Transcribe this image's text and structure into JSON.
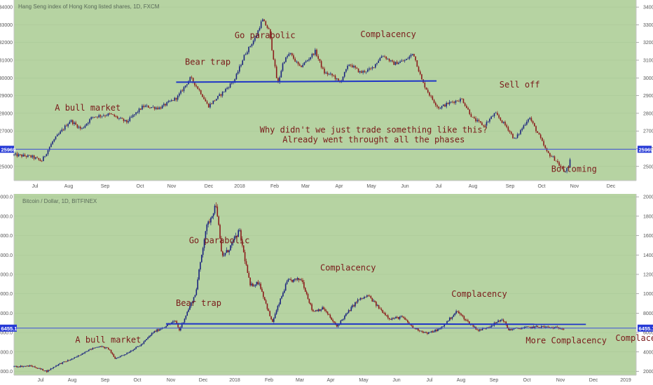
{
  "colors": {
    "background": "#b6d3a2",
    "border": "#c5c5c5",
    "axis_bg": "#ffffff",
    "candle_up": "#1a237e",
    "candle_down": "#8b1a1a",
    "support_line": "#1f35c7",
    "price_line": "#3c50d8",
    "price_tag": "#2539d6",
    "annotation_text": "#7a1b1b"
  },
  "chart_data": [
    {
      "type": "candlestick",
      "title": "Hang Seng index of Hong Kong listed shares, 1D, FXCM",
      "x_tick_labels": [
        "Jul",
        "Aug",
        "Sep",
        "Oct",
        "Nov",
        "Dec",
        "2018",
        "Feb",
        "Mar",
        "Apr",
        "May",
        "Jun",
        "Jul",
        "Aug",
        "Sep",
        "Oct",
        "Nov",
        "Dec"
      ],
      "x_range": [
        "2017-06-15",
        "2018-12-31"
      ],
      "y_ticks": [
        25000,
        26000,
        27000,
        28000,
        29000,
        30000,
        31000,
        32000,
        33000,
        34000
      ],
      "ylim": [
        24200,
        34400
      ],
      "close_series": [
        [
          "2017-06-15",
          25650
        ],
        [
          "2017-07-01",
          25550
        ],
        [
          "2017-07-10",
          25300
        ],
        [
          "2017-07-20",
          26400
        ],
        [
          "2017-08-05",
          27600
        ],
        [
          "2017-08-15",
          27100
        ],
        [
          "2017-08-25",
          27800
        ],
        [
          "2017-09-10",
          27950
        ],
        [
          "2017-09-25",
          27500
        ],
        [
          "2017-10-10",
          28400
        ],
        [
          "2017-10-25",
          28300
        ],
        [
          "2017-11-10",
          28900
        ],
        [
          "2017-11-22",
          30000
        ],
        [
          "2017-12-01",
          29200
        ],
        [
          "2017-12-08",
          28400
        ],
        [
          "2017-12-20",
          29100
        ],
        [
          "2018-01-01",
          29900
        ],
        [
          "2018-01-10",
          31300
        ],
        [
          "2018-01-20",
          32300
        ],
        [
          "2018-01-26",
          33300
        ],
        [
          "2018-02-01",
          32700
        ],
        [
          "2018-02-05",
          31200
        ],
        [
          "2018-02-09",
          29600
        ],
        [
          "2018-02-14",
          30900
        ],
        [
          "2018-02-20",
          31400
        ],
        [
          "2018-03-01",
          30600
        ],
        [
          "2018-03-08",
          31000
        ],
        [
          "2018-03-15",
          31500
        ],
        [
          "2018-03-23",
          30300
        ],
        [
          "2018-04-01",
          30100
        ],
        [
          "2018-04-06",
          29700
        ],
        [
          "2018-04-15",
          30800
        ],
        [
          "2018-04-25",
          30300
        ],
        [
          "2018-05-05",
          30500
        ],
        [
          "2018-05-15",
          31300
        ],
        [
          "2018-05-25",
          30800
        ],
        [
          "2018-06-05",
          31000
        ],
        [
          "2018-06-12",
          31400
        ],
        [
          "2018-06-20",
          29800
        ],
        [
          "2018-06-28",
          28900
        ],
        [
          "2018-07-05",
          28300
        ],
        [
          "2018-07-15",
          28600
        ],
        [
          "2018-07-26",
          28800
        ],
        [
          "2018-08-05",
          27700
        ],
        [
          "2018-08-15",
          27300
        ],
        [
          "2018-08-25",
          28000
        ],
        [
          "2018-09-05",
          27200
        ],
        [
          "2018-09-12",
          26500
        ],
        [
          "2018-09-25",
          27800
        ],
        [
          "2018-10-05",
          26600
        ],
        [
          "2018-10-11",
          25800
        ],
        [
          "2018-10-20",
          25300
        ],
        [
          "2018-10-26",
          24700
        ],
        [
          "2018-10-31",
          24900
        ],
        [
          "2018-11-02",
          25969
        ]
      ],
      "support_line": {
        "start": [
          "2017-11-09",
          29760
        ],
        "end": [
          "2018-07-03",
          29830
        ]
      },
      "last_price": {
        "value": 25969,
        "label": "25969"
      },
      "annotations": [
        {
          "text": "A bull market",
          "at": [
            "2017-07-22",
            28150
          ]
        },
        {
          "text": "Bear trap",
          "at": [
            "2017-11-17",
            30750
          ]
        },
        {
          "text": "Go parabolic",
          "at": [
            "2018-01-01",
            32250
          ]
        },
        {
          "text": "Complacency",
          "at": [
            "2018-04-25",
            32300
          ]
        },
        {
          "text": "Sell off",
          "at": [
            "2018-08-29",
            29450
          ]
        },
        {
          "text": "Why didn't we just trade something like this?",
          "at": [
            "2018-05-07",
            26900
          ]
        },
        {
          "text": "Already went throught all the phases",
          "at": [
            "2018-05-07",
            26350
          ]
        },
        {
          "text": "Bottoming",
          "at": [
            "2018-10-15",
            24700
          ]
        }
      ]
    },
    {
      "type": "candlestick",
      "title": "Bitcoin / Dollar, 1D, BITFINEX",
      "x_tick_labels": [
        "Jul",
        "Aug",
        "Sep",
        "Oct",
        "Nov",
        "Dec",
        "2018",
        "Feb",
        "Mar",
        "Apr",
        "May",
        "Jun",
        "Jul",
        "Aug",
        "Sep",
        "Oct",
        "Nov",
        "Dec",
        "2019"
      ],
      "x_range": [
        "2017-06-15",
        "2019-01-05"
      ],
      "y_ticks": [
        2000,
        4000,
        6000,
        8000,
        10000,
        12000,
        14000,
        16000,
        18000,
        20000
      ],
      "y_tick_labels": [
        "2000.0",
        "4000.0",
        "6000.0",
        "8000.0",
        "10000.0",
        "12000.0",
        "14000.0",
        "16000.0",
        "18000.0",
        "20000.0"
      ],
      "ylim": [
        1600,
        20300
      ],
      "close_series": [
        [
          "2017-06-15",
          2500
        ],
        [
          "2017-07-01",
          2550
        ],
        [
          "2017-07-15",
          2000
        ],
        [
          "2017-07-25",
          2700
        ],
        [
          "2017-08-10",
          3400
        ],
        [
          "2017-08-20",
          4100
        ],
        [
          "2017-09-01",
          4600
        ],
        [
          "2017-09-10",
          4300
        ],
        [
          "2017-09-15",
          3300
        ],
        [
          "2017-09-25",
          3800
        ],
        [
          "2017-10-10",
          4800
        ],
        [
          "2017-10-20",
          6000
        ],
        [
          "2017-11-01",
          6700
        ],
        [
          "2017-11-10",
          7200
        ],
        [
          "2017-11-13",
          6200
        ],
        [
          "2017-11-20",
          8000
        ],
        [
          "2017-11-28",
          10000
        ],
        [
          "2017-12-07",
          16500
        ],
        [
          "2017-12-17",
          19300
        ],
        [
          "2017-12-22",
          13800
        ],
        [
          "2017-12-28",
          14500
        ],
        [
          "2018-01-07",
          16500
        ],
        [
          "2018-01-17",
          10800
        ],
        [
          "2018-01-25",
          11200
        ],
        [
          "2018-02-06",
          7000
        ],
        [
          "2018-02-15",
          9800
        ],
        [
          "2018-02-20",
          11300
        ],
        [
          "2018-03-05",
          11500
        ],
        [
          "2018-03-15",
          8200
        ],
        [
          "2018-03-25",
          8500
        ],
        [
          "2018-04-06",
          6600
        ],
        [
          "2018-04-15",
          7900
        ],
        [
          "2018-04-25",
          9300
        ],
        [
          "2018-05-05",
          9800
        ],
        [
          "2018-05-15",
          8500
        ],
        [
          "2018-05-25",
          7400
        ],
        [
          "2018-06-05",
          7600
        ],
        [
          "2018-06-15",
          6500
        ],
        [
          "2018-06-28",
          5900
        ],
        [
          "2018-07-10",
          6400
        ],
        [
          "2018-07-25",
          8200
        ],
        [
          "2018-08-05",
          7000
        ],
        [
          "2018-08-14",
          6200
        ],
        [
          "2018-08-25",
          6700
        ],
        [
          "2018-09-05",
          7400
        ],
        [
          "2018-09-10",
          6300
        ],
        [
          "2018-09-25",
          6500
        ],
        [
          "2018-10-10",
          6600
        ],
        [
          "2018-10-20",
          6500
        ],
        [
          "2018-11-01",
          6455
        ]
      ],
      "support_line": {
        "start": [
          "2017-11-01",
          6900
        ],
        "end": [
          "2018-11-20",
          6850
        ]
      },
      "last_price": {
        "value": 6455.1,
        "label": "6455.1"
      },
      "annotations": [
        {
          "text": "A bull market",
          "at": [
            "2017-08-10",
            4950
          ]
        },
        {
          "text": "Bear trap",
          "at": [
            "2017-11-10",
            8750
          ]
        },
        {
          "text": "Go parabolic",
          "at": [
            "2017-11-22",
            15200
          ]
        },
        {
          "text": "Complacency",
          "at": [
            "2018-03-22",
            12400
          ]
        },
        {
          "text": "Complacency",
          "at": [
            "2018-07-20",
            9700
          ]
        },
        {
          "text": "More Complacency",
          "at": [
            "2018-09-26",
            4900
          ]
        },
        {
          "text": "Complacency",
          "at": [
            "2018-12-17",
            5150
          ]
        }
      ]
    }
  ]
}
